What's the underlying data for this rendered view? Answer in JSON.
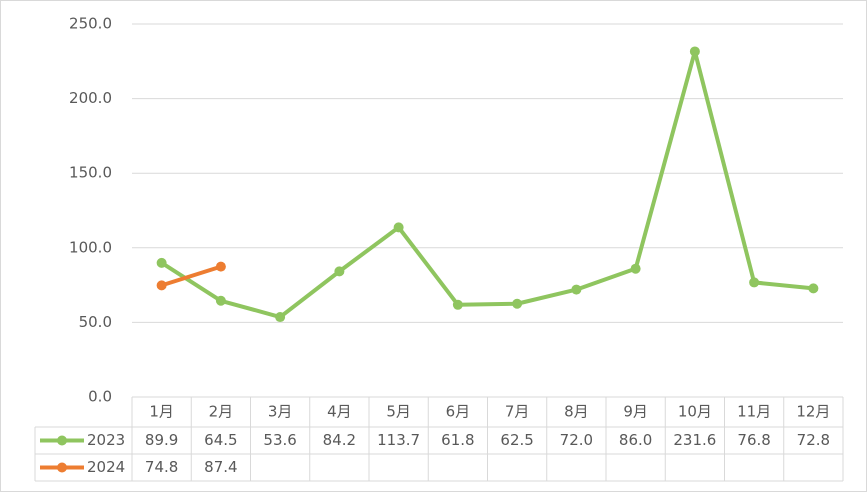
{
  "chart_data": {
    "type": "line",
    "categories": [
      "1月",
      "2月",
      "3月",
      "4月",
      "5月",
      "6月",
      "7月",
      "8月",
      "9月",
      "10月",
      "11月",
      "12月"
    ],
    "series": [
      {
        "name": "2023",
        "color": "#8fc55f",
        "values": [
          89.9,
          64.5,
          53.6,
          84.2,
          113.7,
          61.8,
          62.5,
          72.0,
          86.0,
          231.6,
          76.8,
          72.8
        ],
        "value_labels": [
          "89.9",
          "64.5",
          "53.6",
          "84.2",
          "113.7",
          "61.8",
          "62.5",
          "72.0",
          "86.0",
          "231.6",
          "76.8",
          "72.8"
        ]
      },
      {
        "name": "2024",
        "color": "#ed7d31",
        "values": [
          74.8,
          87.4,
          null,
          null,
          null,
          null,
          null,
          null,
          null,
          null,
          null,
          null
        ]
      }
    ],
    "ylim": [
      0,
      250
    ],
    "yticks": [
      {
        "value": 0,
        "label": "0.0"
      },
      {
        "value": 50,
        "label": "50.0"
      },
      {
        "value": 100,
        "label": "100.0"
      },
      {
        "value": 150,
        "label": "150.0"
      },
      {
        "value": 200,
        "label": "200.0"
      },
      {
        "value": 250,
        "label": "250.0"
      }
    ],
    "grid": true
  }
}
